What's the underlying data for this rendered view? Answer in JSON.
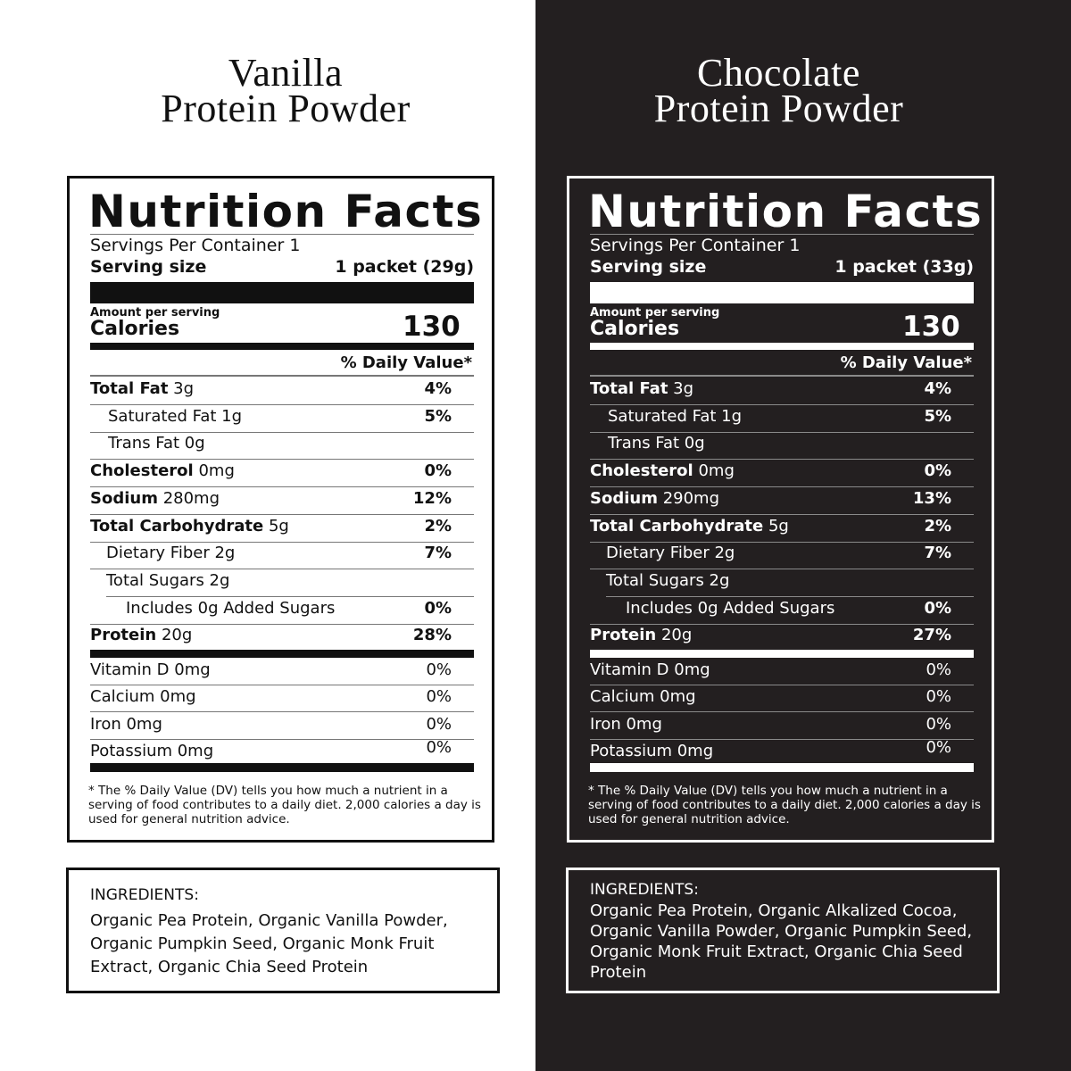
{
  "vanilla": {
    "title_line1": "Vanilla",
    "title_line2": "Protein Powder",
    "nf_title": "Nutrition Facts",
    "servings": "Servings Per Container 1",
    "serving_size_label": "Serving size",
    "serving_size_value": "1 packet (29g)",
    "amount_per_serving": "Amount per serving",
    "calories_label": "Calories",
    "calories_value": "130",
    "dv_header": "% Daily Value*",
    "rows": [
      {
        "bold": "Total Fat",
        "amount": "3g",
        "dv": "4%"
      },
      {
        "bold": "",
        "amount": "Saturated Fat 1g",
        "dv": "5%"
      },
      {
        "bold": "",
        "amount": "Trans Fat 0g",
        "dv": ""
      },
      {
        "bold": "Cholesterol",
        "amount": "0mg",
        "dv": "0%"
      },
      {
        "bold": "Sodium",
        "amount": "280mg",
        "dv": "12%"
      },
      {
        "bold": "Total Carbohydrate",
        "amount": "5g",
        "dv": "2%"
      },
      {
        "bold": "",
        "amount": "Dietary Fiber 2g",
        "dv": "7%"
      },
      {
        "bold": "",
        "amount": "Total Sugars  2g",
        "dv": ""
      },
      {
        "bold": "",
        "amount": "Includes 0g Added Sugars",
        "dv": "0%"
      },
      {
        "bold": "Protein",
        "amount": "20g",
        "dv": "28%"
      }
    ],
    "vitamins": [
      {
        "name": "Vitamin D 0mg",
        "dv": "0%"
      },
      {
        "name": "Calcium 0mg",
        "dv": "0%"
      },
      {
        "name": "Iron 0mg",
        "dv": "0%"
      },
      {
        "name": "Potassium 0mg",
        "dv": "0%"
      }
    ],
    "footnote": "* The % Daily Value (DV) tells you how much a nutrient in a serving of food contributes to a daily diet. 2,000 calories a day is used for general nutrition advice.",
    "ingredients_label": "INGREDIENTS:",
    "ingredients": "Organic Pea Protein, Organic Vanilla Powder, Organic Pumpkin Seed, Organic Monk Fruit Extract, Organic Chia Seed Protein"
  },
  "chocolate": {
    "title_line1": "Chocolate",
    "title_line2": "Protein Powder",
    "nf_title": "Nutrition Facts",
    "servings": "Servings Per Container 1",
    "serving_size_label": "Serving size",
    "serving_size_value": "1 packet (33g)",
    "amount_per_serving": "Amount per serving",
    "calories_label": "Calories",
    "calories_value": "130",
    "dv_header": "% Daily Value*",
    "rows": [
      {
        "bold": "Total Fat",
        "amount": "3g",
        "dv": "4%"
      },
      {
        "bold": "",
        "amount": "Saturated Fat 1g",
        "dv": "5%"
      },
      {
        "bold": "",
        "amount": "Trans Fat 0g",
        "dv": ""
      },
      {
        "bold": "Cholesterol",
        "amount": "0mg",
        "dv": "0%"
      },
      {
        "bold": "Sodium",
        "amount": "290mg",
        "dv": "13%"
      },
      {
        "bold": "Total Carbohydrate",
        "amount": "5g",
        "dv": "2%"
      },
      {
        "bold": "",
        "amount": "Dietary Fiber 2g",
        "dv": "7%"
      },
      {
        "bold": "",
        "amount": "Total Sugars  2g",
        "dv": ""
      },
      {
        "bold": "",
        "amount": "Includes 0g Added Sugars",
        "dv": "0%"
      },
      {
        "bold": "Protein",
        "amount": "20g",
        "dv": "27%"
      }
    ],
    "vitamins": [
      {
        "name": "Vitamin D 0mg",
        "dv": "0%"
      },
      {
        "name": "Calcium 0mg",
        "dv": "0%"
      },
      {
        "name": "Iron 0mg",
        "dv": "0%"
      },
      {
        "name": "Potassium 0mg",
        "dv": "0%"
      }
    ],
    "footnote": "* The % Daily Value (DV) tells you how much a nutrient in a serving of food contributes to a daily diet. 2,000 calories a day is used for general nutrition advice.",
    "ingredients_label": "INGREDIENTS:",
    "ingredients": "Organic Pea Protein, Organic Alkalized Cocoa, Organic Vanilla Powder, Organic Pumpkin Seed, Organic Monk Fruit Extract, Organic Chia Seed Protein"
  },
  "colors": {
    "dark_panel": "#231f20",
    "light_panel": "#ffffff"
  }
}
